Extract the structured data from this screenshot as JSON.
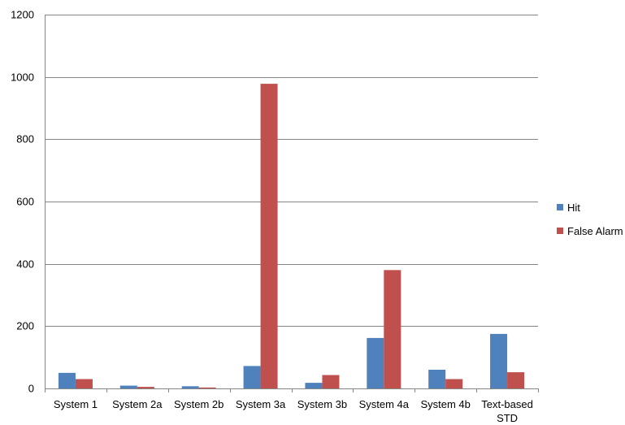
{
  "chart_data": {
    "type": "bar",
    "categories": [
      "System 1",
      "System 2a",
      "System 2b",
      "System 3a",
      "System 3b",
      "System 4a",
      "System 4b",
      "Text-based STD"
    ],
    "series": [
      {
        "name": "Hit",
        "color": "#4f81bd",
        "values": [
          50,
          9,
          7,
          72,
          18,
          162,
          60,
          175
        ]
      },
      {
        "name": "False Alarm",
        "color": "#c0504d",
        "values": [
          30,
          5,
          3,
          978,
          43,
          380,
          30,
          52
        ]
      }
    ],
    "ylim": [
      0,
      1200
    ],
    "yticks": [
      0,
      200,
      400,
      600,
      800,
      1000,
      1200
    ],
    "grid": true,
    "legend_position": "right"
  }
}
